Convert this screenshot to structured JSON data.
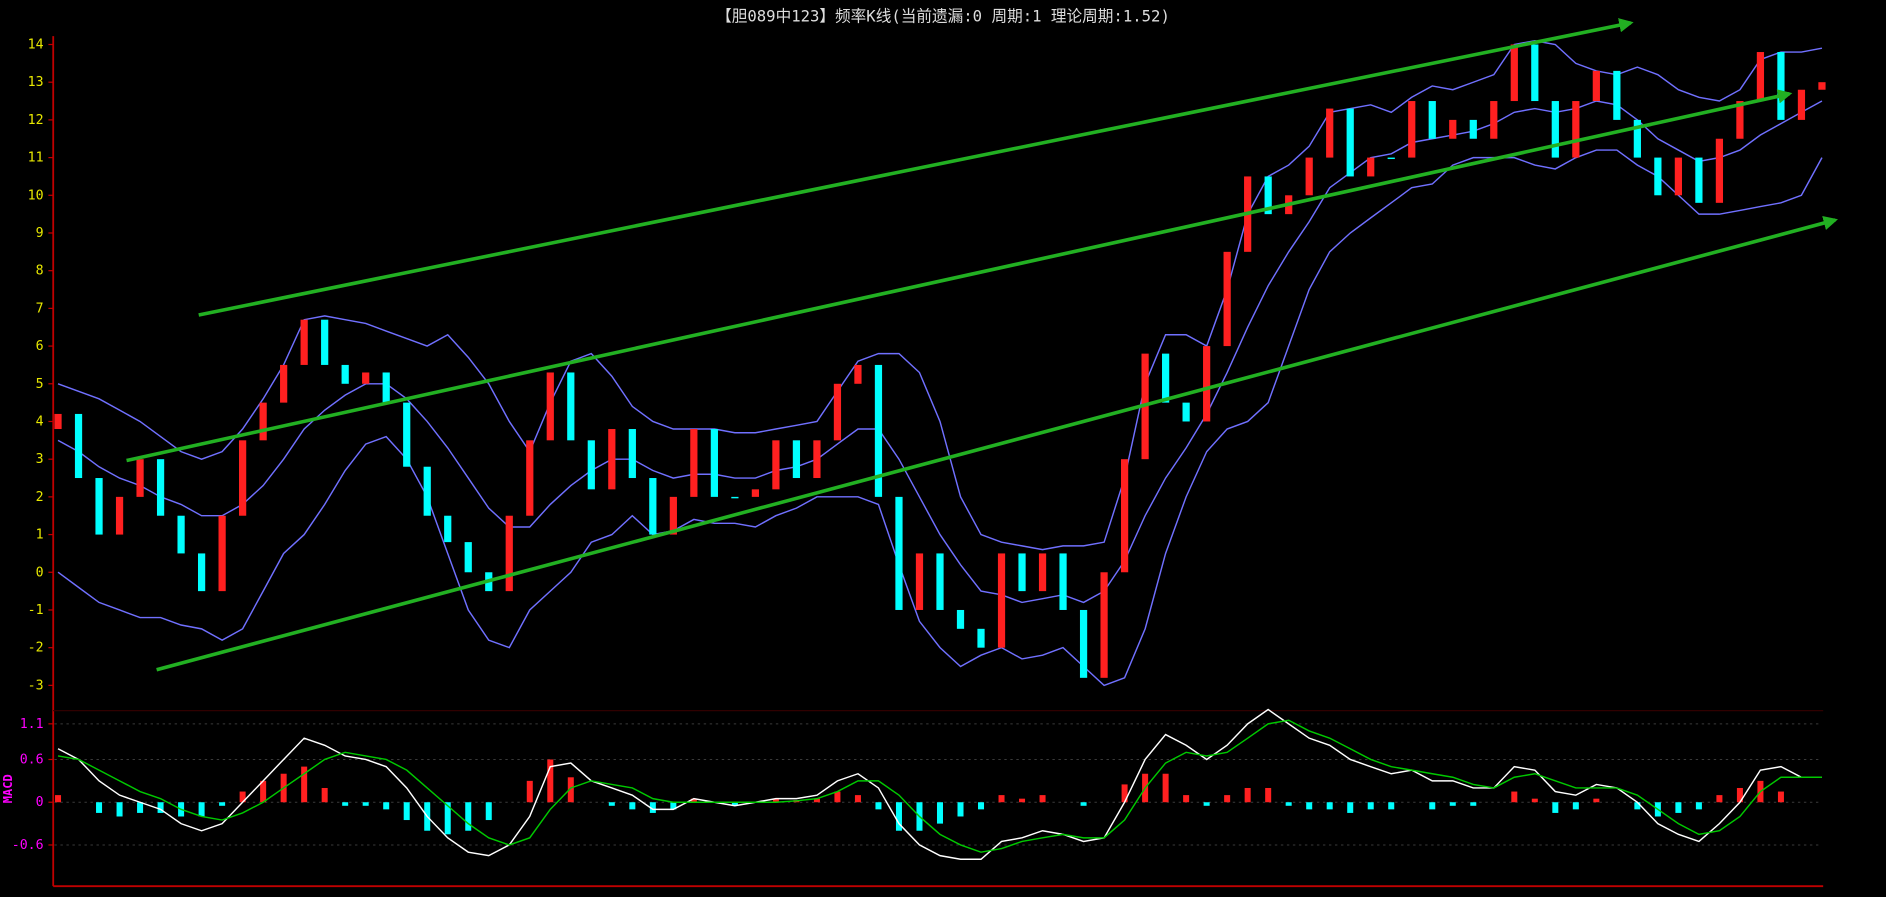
{
  "chart_data": [
    {
      "type": "candlestick",
      "title": "【胆089中123】频率K线(当前遗漏:0 周期:1 理论周期:1.52)",
      "up_color": "#ff2020",
      "down_color": "#00ffff",
      "tick_color": "#e8e800",
      "ylim": [
        -3.3,
        14.3
      ],
      "yticks": [
        -3,
        -2,
        -1,
        0,
        1,
        2,
        3,
        4,
        5,
        6,
        7,
        8,
        9,
        10,
        11,
        12,
        13,
        14
      ],
      "grid": false,
      "open": [
        3.8,
        4.2,
        2.5,
        1.0,
        2.0,
        3.0,
        1.5,
        0.5,
        -0.5,
        1.5,
        3.5,
        4.5,
        5.5,
        6.7,
        5.5,
        5.0,
        5.3,
        4.5,
        2.8,
        1.5,
        0.8,
        0.0,
        -0.5,
        1.5,
        3.5,
        5.3,
        3.5,
        2.2,
        3.8,
        2.5,
        1.0,
        2.0,
        3.8,
        2.0,
        2.0,
        2.2,
        3.5,
        2.5,
        3.5,
        5.0,
        5.5,
        2.0,
        -1.0,
        0.5,
        -1.0,
        -1.5,
        -2.0,
        0.5,
        -0.5,
        0.5,
        -1.0,
        -2.8,
        0.0,
        3.0,
        5.8,
        4.5,
        4.0,
        6.0,
        8.5,
        10.5,
        9.5,
        10.0,
        11.0,
        12.3,
        10.5,
        11.0,
        11.0,
        12.5,
        11.5,
        12.0,
        11.5,
        12.5,
        14.0,
        12.5,
        11.0,
        12.5,
        13.3,
        12.0,
        11.0,
        10.0,
        11.0,
        9.8,
        11.5,
        12.5,
        13.8,
        12.0,
        12.8
      ],
      "close": [
        4.2,
        2.5,
        1.0,
        2.0,
        3.0,
        1.5,
        0.5,
        -0.5,
        1.5,
        3.5,
        4.5,
        5.5,
        6.7,
        5.5,
        5.0,
        5.3,
        4.5,
        2.8,
        1.5,
        0.8,
        0.0,
        -0.5,
        1.5,
        3.5,
        5.3,
        3.5,
        2.2,
        3.8,
        2.5,
        1.0,
        2.0,
        3.8,
        2.0,
        2.0,
        2.2,
        3.5,
        2.5,
        3.5,
        5.0,
        5.5,
        2.0,
        -1.0,
        0.5,
        -1.0,
        -1.5,
        -2.0,
        0.5,
        -0.5,
        0.5,
        -1.0,
        -2.8,
        0.0,
        3.0,
        5.8,
        4.5,
        4.0,
        6.0,
        8.5,
        10.5,
        9.5,
        10.0,
        11.0,
        12.3,
        10.5,
        11.0,
        11.0,
        12.5,
        11.5,
        12.0,
        11.5,
        12.5,
        14.0,
        12.5,
        11.0,
        12.5,
        13.3,
        12.0,
        11.0,
        10.0,
        11.0,
        9.8,
        11.5,
        12.5,
        13.8,
        12.0,
        12.8,
        13.0
      ],
      "bands": [
        {
          "color": "#7070ff",
          "values": [
            5.0,
            4.8,
            4.6,
            4.3,
            4.0,
            3.6,
            3.2,
            3.0,
            3.2,
            3.8,
            4.6,
            5.5,
            6.7,
            6.8,
            6.7,
            6.6,
            6.4,
            6.2,
            6.0,
            6.3,
            5.7,
            5.0,
            4.0,
            3.2,
            4.5,
            5.6,
            5.8,
            5.2,
            4.4,
            4.0,
            3.8,
            3.8,
            3.8,
            3.7,
            3.7,
            3.8,
            3.9,
            4.0,
            4.8,
            5.6,
            5.8,
            5.8,
            5.3,
            4.0,
            2.0,
            1.0,
            0.8,
            0.7,
            0.6,
            0.7,
            0.7,
            0.8,
            2.5,
            5.0,
            6.3,
            6.3,
            6.0,
            7.5,
            9.5,
            10.5,
            10.8,
            11.3,
            12.2,
            12.3,
            12.4,
            12.2,
            12.6,
            12.9,
            12.8,
            13.0,
            13.2,
            14.0,
            14.1,
            14.0,
            13.5,
            13.3,
            13.2,
            13.4,
            13.2,
            12.8,
            12.6,
            12.5,
            12.8,
            13.6,
            13.8,
            13.8,
            13.9
          ]
        },
        {
          "color": "#7070ff",
          "values": [
            3.5,
            3.2,
            2.8,
            2.5,
            2.3,
            2.0,
            1.8,
            1.5,
            1.5,
            1.8,
            2.3,
            3.0,
            3.8,
            4.3,
            4.7,
            5.0,
            5.0,
            4.6,
            4.0,
            3.3,
            2.5,
            1.7,
            1.2,
            1.2,
            1.8,
            2.3,
            2.7,
            3.0,
            3.0,
            2.7,
            2.5,
            2.6,
            2.6,
            2.5,
            2.5,
            2.7,
            2.8,
            3.0,
            3.4,
            3.8,
            3.8,
            3.0,
            2.0,
            1.0,
            0.2,
            -0.5,
            -0.6,
            -0.8,
            -0.7,
            -0.6,
            -0.8,
            -0.5,
            0.3,
            1.5,
            2.5,
            3.3,
            4.2,
            5.3,
            6.5,
            7.6,
            8.5,
            9.3,
            10.2,
            10.6,
            11.0,
            11.1,
            11.4,
            11.5,
            11.6,
            11.7,
            11.9,
            12.2,
            12.3,
            12.2,
            12.3,
            12.5,
            12.4,
            12.0,
            11.5,
            11.2,
            10.9,
            11.0,
            11.2,
            11.6,
            11.9,
            12.2,
            12.5
          ]
        },
        {
          "color": "#7070ff",
          "values": [
            0.0,
            -0.4,
            -0.8,
            -1.0,
            -1.2,
            -1.2,
            -1.4,
            -1.5,
            -1.8,
            -1.5,
            -0.5,
            0.5,
            1.0,
            1.8,
            2.7,
            3.4,
            3.6,
            3.0,
            2.0,
            0.5,
            -1.0,
            -1.8,
            -2.0,
            -1.0,
            -0.5,
            0.0,
            0.8,
            1.0,
            1.5,
            1.0,
            1.1,
            1.4,
            1.3,
            1.3,
            1.2,
            1.5,
            1.7,
            2.0,
            2.0,
            2.0,
            1.8,
            0.2,
            -1.3,
            -2.0,
            -2.5,
            -2.2,
            -2.0,
            -2.3,
            -2.2,
            -2.0,
            -2.5,
            -3.0,
            -2.8,
            -1.5,
            0.5,
            2.0,
            3.2,
            3.8,
            4.0,
            4.5,
            6.0,
            7.5,
            8.5,
            9.0,
            9.4,
            9.8,
            10.2,
            10.3,
            10.8,
            11.0,
            11.0,
            11.0,
            10.8,
            10.7,
            11.0,
            11.2,
            11.2,
            10.8,
            10.5,
            10.0,
            9.5,
            9.5,
            9.6,
            9.7,
            9.8,
            10.0,
            11.0
          ]
        }
      ]
    },
    {
      "type": "macd",
      "label": "MACD",
      "up_color": "#ff2020",
      "down_color": "#00ffff",
      "tick_color": "#ff00ff",
      "ylim": [
        -1.06,
        1.1
      ],
      "yticks": [
        -0.6,
        0,
        0.6,
        1.1
      ],
      "grid": true,
      "hist": [
        0.1,
        0,
        -0.15,
        -0.2,
        -0.15,
        -0.15,
        -0.2,
        -0.2,
        -0.05,
        0.15,
        0.3,
        0.4,
        0.5,
        0.2,
        -0.05,
        -0.05,
        -0.1,
        -0.25,
        -0.4,
        -0.45,
        -0.4,
        -0.25,
        0,
        0.3,
        0.6,
        0.35,
        0,
        -0.05,
        -0.1,
        -0.15,
        -0.1,
        0.05,
        0,
        -0.05,
        0,
        0.05,
        0.03,
        0.05,
        0.15,
        0.1,
        -0.1,
        -0.4,
        -0.4,
        -0.3,
        -0.2,
        -0.1,
        0.1,
        0.05,
        0.1,
        0,
        -0.05,
        0,
        0.25,
        0.4,
        0.4,
        0.1,
        -0.05,
        0.1,
        0.2,
        0.2,
        -0.05,
        -0.1,
        -0.1,
        -0.15,
        -0.1,
        -0.1,
        0,
        -0.1,
        -0.05,
        -0.05,
        0,
        0.15,
        0.05,
        -0.15,
        -0.1,
        0.05,
        0,
        -0.1,
        -0.2,
        -0.15,
        -0.1,
        0.1,
        0.2,
        0.3,
        0.15,
        0,
        0
      ],
      "series": [
        {
          "color": "#ffffff",
          "values": [
            0.75,
            0.6,
            0.3,
            0.1,
            0.0,
            -0.1,
            -0.3,
            -0.4,
            -0.3,
            0.0,
            0.3,
            0.6,
            0.9,
            0.8,
            0.65,
            0.6,
            0.5,
            0.2,
            -0.2,
            -0.5,
            -0.7,
            -0.75,
            -0.6,
            -0.2,
            0.5,
            0.55,
            0.3,
            0.2,
            0.1,
            -0.1,
            -0.1,
            0.05,
            0.0,
            -0.05,
            0.0,
            0.05,
            0.05,
            0.1,
            0.3,
            0.4,
            0.2,
            -0.3,
            -0.6,
            -0.75,
            -0.8,
            -0.8,
            -0.55,
            -0.5,
            -0.4,
            -0.45,
            -0.55,
            -0.5,
            0.0,
            0.6,
            0.95,
            0.8,
            0.6,
            0.8,
            1.1,
            1.3,
            1.1,
            0.9,
            0.8,
            0.6,
            0.5,
            0.4,
            0.45,
            0.3,
            0.3,
            0.2,
            0.2,
            0.5,
            0.45,
            0.15,
            0.1,
            0.25,
            0.2,
            0.0,
            -0.3,
            -0.45,
            -0.55,
            -0.3,
            0.0,
            0.45,
            0.5,
            0.35,
            0.35
          ]
        },
        {
          "color": "#00c800",
          "values": [
            0.65,
            0.6,
            0.45,
            0.3,
            0.15,
            0.05,
            -0.1,
            -0.2,
            -0.25,
            -0.15,
            0.0,
            0.2,
            0.4,
            0.6,
            0.7,
            0.65,
            0.6,
            0.45,
            0.2,
            -0.05,
            -0.3,
            -0.5,
            -0.6,
            -0.5,
            -0.1,
            0.2,
            0.3,
            0.25,
            0.2,
            0.05,
            0.0,
            0.0,
            0.0,
            0.0,
            0.0,
            0.0,
            0.02,
            0.05,
            0.15,
            0.3,
            0.3,
            0.1,
            -0.2,
            -0.45,
            -0.6,
            -0.7,
            -0.65,
            -0.55,
            -0.5,
            -0.45,
            -0.5,
            -0.5,
            -0.25,
            0.2,
            0.55,
            0.7,
            0.65,
            0.7,
            0.9,
            1.1,
            1.15,
            1.0,
            0.9,
            0.75,
            0.6,
            0.5,
            0.45,
            0.4,
            0.35,
            0.25,
            0.2,
            0.35,
            0.4,
            0.3,
            0.2,
            0.2,
            0.2,
            0.1,
            -0.1,
            -0.3,
            -0.45,
            -0.4,
            -0.2,
            0.15,
            0.35,
            0.35,
            0.35
          ]
        }
      ]
    }
  ]
}
